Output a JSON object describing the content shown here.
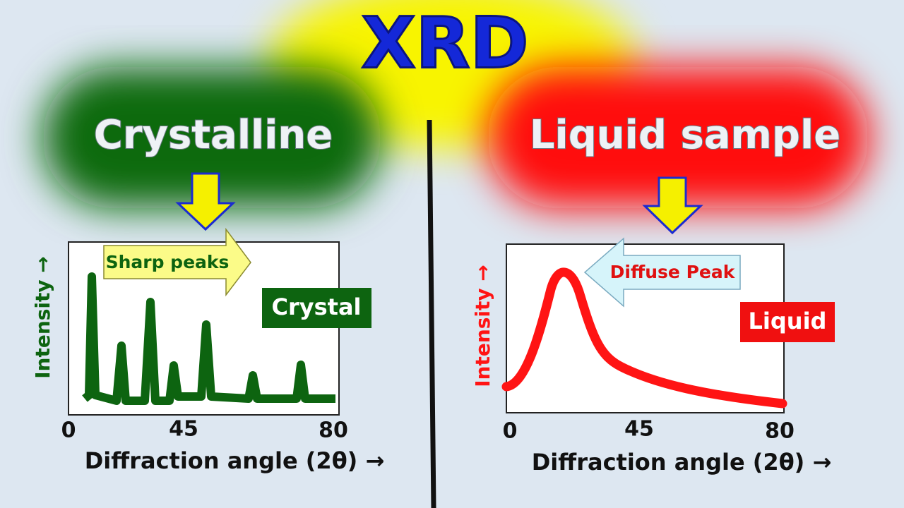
{
  "title": "XRD",
  "panels": [
    {
      "heading": "Crystalline",
      "callout": "Sharp peaks",
      "badge": "Crystal",
      "y_label": "Intensity →",
      "x_ticks": [
        "0",
        "45",
        "80"
      ],
      "x_label": "Diffraction angle (2θ) →"
    },
    {
      "heading": "Liquid sample",
      "callout": "Diffuse Peak",
      "badge": "Liquid",
      "y_label": "Intensity →",
      "x_ticks": [
        "0",
        "45",
        "80"
      ],
      "x_label": "Diffraction angle (2θ) →"
    }
  ]
}
